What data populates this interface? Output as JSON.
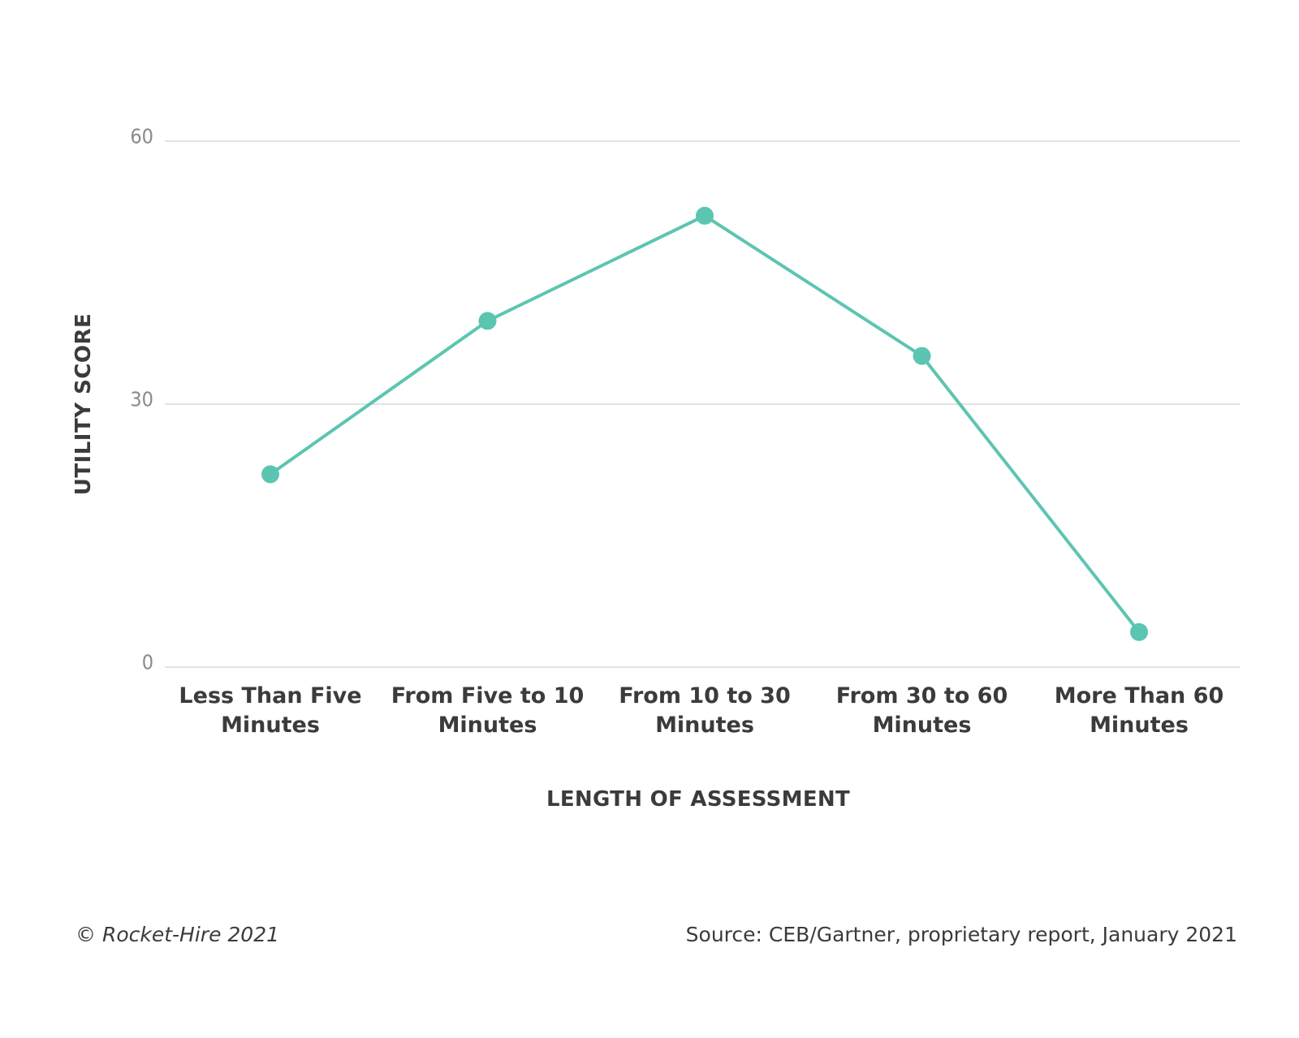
{
  "chart_data": {
    "type": "line",
    "title": "",
    "xlabel": "LENGTH OF ASSESSMENT",
    "ylabel": "UTILITY SCORE",
    "ylim": [
      0,
      60
    ],
    "yticks": [
      "0",
      "30",
      "60"
    ],
    "grid": true,
    "categories": [
      [
        "Less Than Five",
        "Minutes"
      ],
      [
        "From Five to 10",
        "Minutes"
      ],
      [
        "From 10 to 30",
        "Minutes"
      ],
      [
        "From 30 to 60",
        "Minutes"
      ],
      [
        "More Than 60",
        "Minutes"
      ]
    ],
    "series": [
      {
        "values": [
          22,
          39.5,
          51.5,
          35.5,
          4
        ],
        "color": "#5cc5b1"
      }
    ]
  },
  "footer": {
    "copyright_symbol": "©",
    "copyright_text": "Rocket-Hire 2021",
    "source": "Source: CEB/Gartner, proprietary report, January 2021"
  },
  "colors": {
    "line": "#5cc5b1",
    "grid": "#d9d9d9",
    "tick_text": "#8a8a8a",
    "label_text": "#3b3b3b"
  }
}
